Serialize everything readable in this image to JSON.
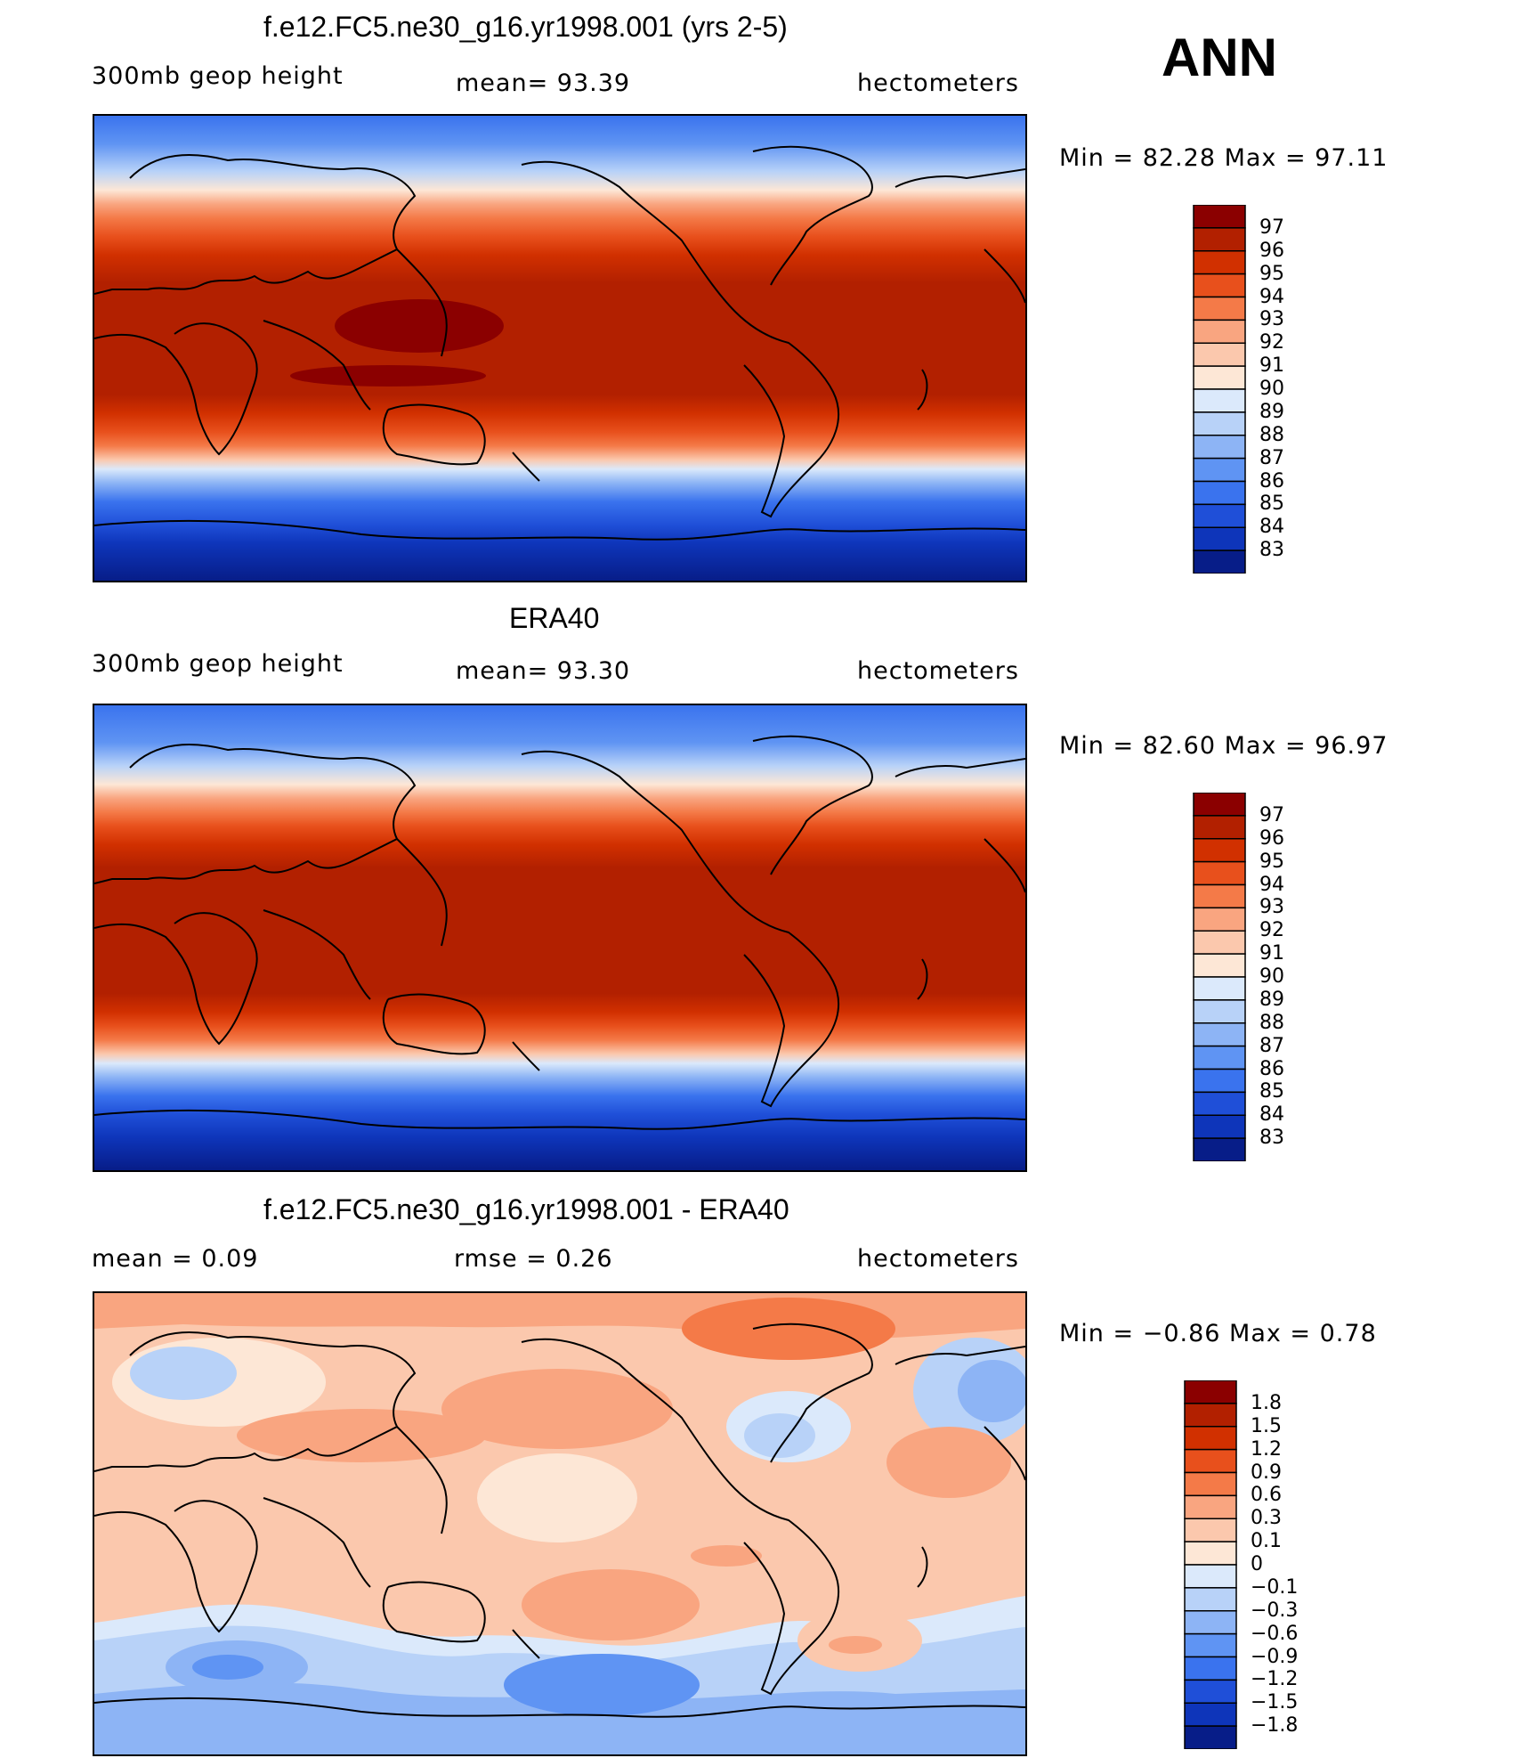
{
  "season": "ANN",
  "panels": [
    {
      "title": "f.e12.FC5.ne30_g16.yr1998.001 (yrs 2-5)",
      "left_label": "300mb  geop  height",
      "center_label": "mean=   93.39",
      "units": "hectometers",
      "minmax": "Min  =    82.28  Max  =    97.11",
      "colorbar": {
        "labels": [
          "97",
          "96",
          "95",
          "94",
          "93",
          "92",
          "91",
          "90",
          "89",
          "88",
          "87",
          "86",
          "85",
          "84",
          "83"
        ],
        "colors": [
          "#8b0000",
          "#b22000",
          "#d13000",
          "#e8501c",
          "#f47a48",
          "#f9a580",
          "#fbc8ad",
          "#fde7d6",
          "#dbe9fb",
          "#b8d2f8",
          "#8db4f5",
          "#5f94f3",
          "#3a73ee",
          "#1f4fd8",
          "#0e35ba",
          "#071d88"
        ]
      }
    },
    {
      "title": "ERA40",
      "left_label": "300mb  geop  height",
      "center_label": "mean=   93.30",
      "units": "hectometers",
      "minmax": "Min  =    82.60  Max  =    96.97",
      "colorbar": {
        "labels": [
          "97",
          "96",
          "95",
          "94",
          "93",
          "92",
          "91",
          "90",
          "89",
          "88",
          "87",
          "86",
          "85",
          "84",
          "83"
        ],
        "colors": [
          "#8b0000",
          "#b22000",
          "#d13000",
          "#e8501c",
          "#f47a48",
          "#f9a580",
          "#fbc8ad",
          "#fde7d6",
          "#dbe9fb",
          "#b8d2f8",
          "#8db4f5",
          "#5f94f3",
          "#3a73ee",
          "#1f4fd8",
          "#0e35ba",
          "#071d88"
        ]
      }
    },
    {
      "title": "f.e12.FC5.ne30_g16.yr1998.001 - ERA40",
      "left_label": "mean  =      0.09",
      "center_label": "rmse  =      0.26",
      "units": "hectometers",
      "minmax": "Min  =    −0.86  Max  =       0.78",
      "colorbar": {
        "labels": [
          "1.8",
          "1.5",
          "1.2",
          "0.9",
          "0.6",
          "0.3",
          "0.1",
          "0",
          "−0.1",
          "−0.3",
          "−0.6",
          "−0.9",
          "−1.2",
          "−1.5",
          "−1.8"
        ],
        "colors": [
          "#8b0000",
          "#b22000",
          "#d13000",
          "#e8501c",
          "#f47a48",
          "#f9a580",
          "#fbc8ad",
          "#fde7d6",
          "#dbe9fb",
          "#b8d2f8",
          "#8db4f5",
          "#5f94f3",
          "#3a73ee",
          "#1f4fd8",
          "#0e35ba",
          "#071d88"
        ]
      }
    }
  ]
}
